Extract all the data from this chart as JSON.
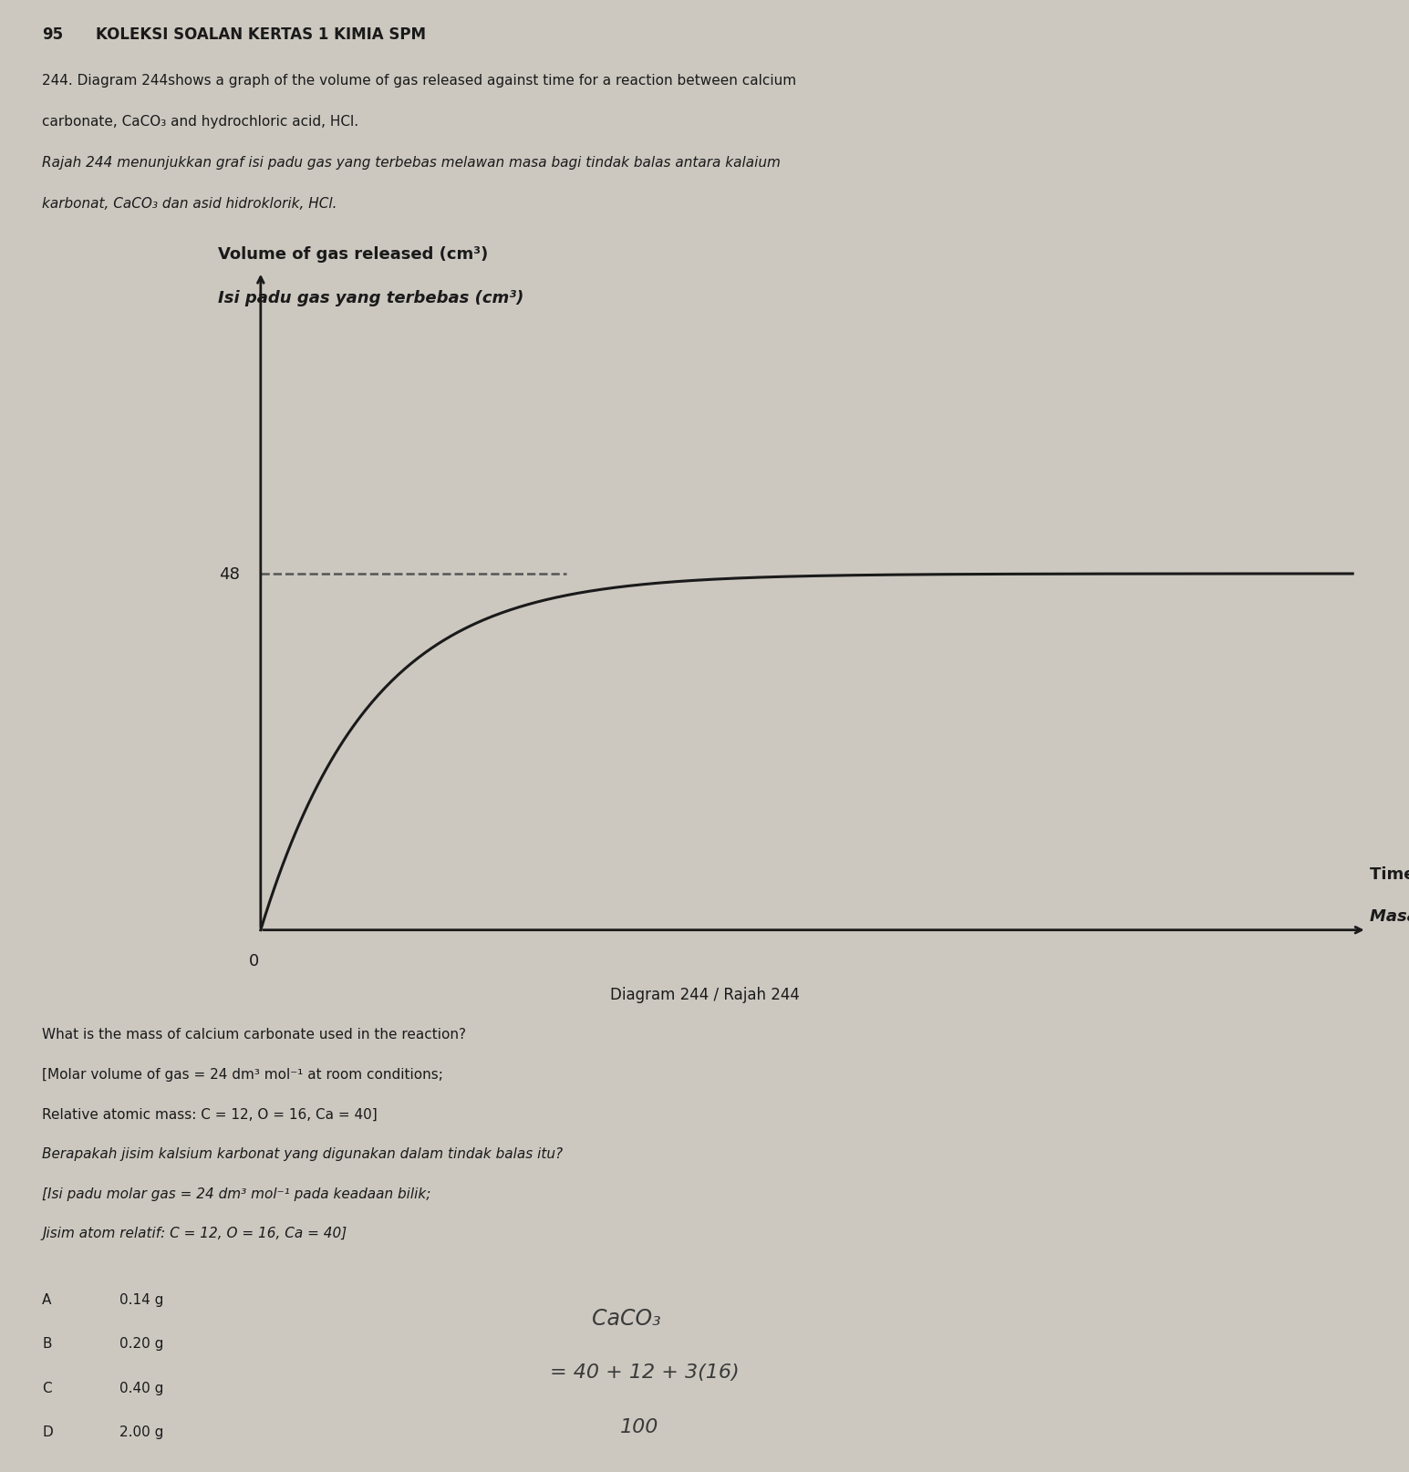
{
  "background_color": "#ccc8c0",
  "page_number": "95",
  "header_text": "KOLEKSI SOALAN KERTAS 1 KIMIA SPM",
  "ylabel_en": "Volume of gas released (cm³)",
  "ylabel_my": "Isi padu gas yang terbebas (cm³)",
  "xlabel_en": "Time (s)",
  "xlabel_my": "Masa (s)",
  "y_tick_label": "48",
  "x_tick_label": "0",
  "diagram_caption": "Diagram 244 / Rajah 244",
  "sub_question_en1": "What is the mass of calcium carbonate used in the reaction?",
  "sub_question_en2": "[Molar volume of gas = 24 dm³ mol⁻¹ at room conditions;",
  "sub_question_en3": "Relative atomic mass: C = 12, O = 16, Ca = 40]",
  "sub_question_my1": "Berapakah jisim kalsium karbonat yang digunakan dalam tindak balas itu?",
  "sub_question_my2": "[Isi padu molar gas = 24 dm³ mol⁻¹ pada keadaan bilik;",
  "sub_question_my3": "Jisim atom relatif: C = 12, O = 16, Ca = 40]",
  "opt_A": "A",
  "opt_B": "B",
  "opt_C": "C",
  "opt_D": "D",
  "val_A": "0.14 g",
  "val_B": "0.20 g",
  "val_C": "0.40 g",
  "val_D": "2.00 g",
  "handwriting_line1": "CaCO₃",
  "handwriting_line2": "= 40 + 12 + 3(16)",
  "handwriting_line3": "100",
  "text_color": "#1a1a1a",
  "axis_color": "#1a1a1a",
  "curve_color": "#1a1a1a",
  "dashed_color": "#555555",
  "graph_plateau": 48,
  "k": 10.0
}
